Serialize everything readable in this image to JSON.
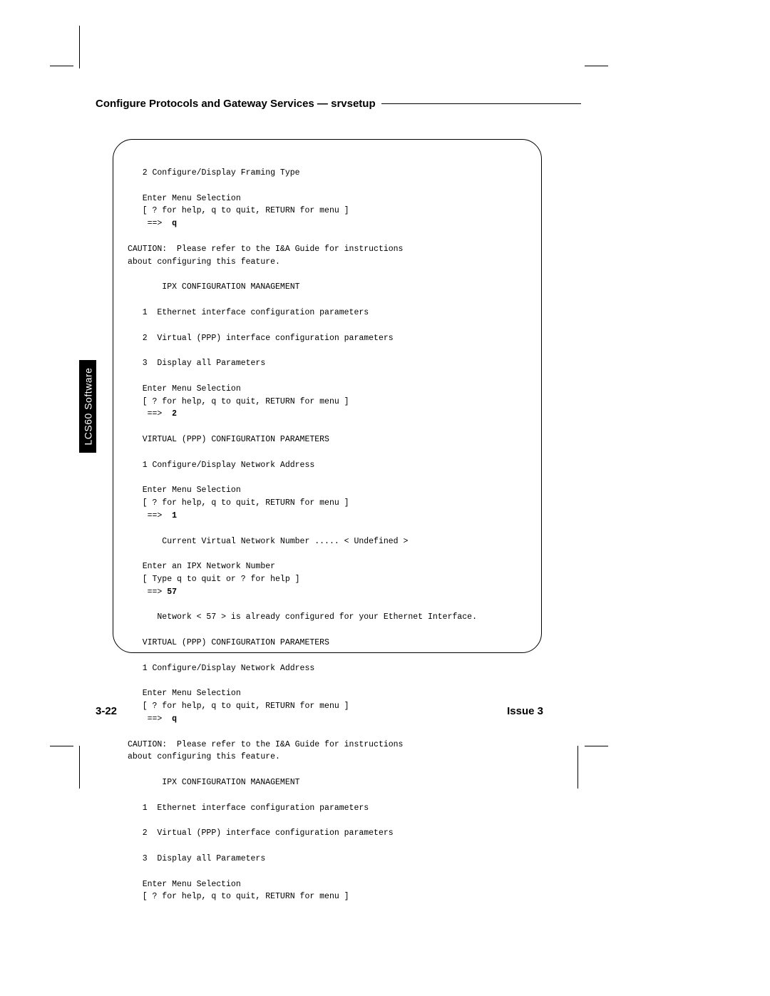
{
  "header": {
    "title": "Configure Protocols and Gateway Services — srvsetup"
  },
  "side_tab": {
    "label": "LCS60 Software"
  },
  "terminal": {
    "l01": "   2 Configure/Display Framing Type",
    "l02": "   Enter Menu Selection",
    "l03": "   [ ? for help, q to quit, RETURN for menu ]",
    "l04a": "    ==>  ",
    "l04b": "q",
    "l05": "CAUTION:  Please refer to the I&A Guide for instructions",
    "l06": "about configuring this feature.",
    "l07": "       IPX CONFIGURATION MANAGEMENT",
    "l08": "   1  Ethernet interface configuration parameters",
    "l09": "   2  Virtual (PPP) interface configuration parameters",
    "l10": "   3  Display all Parameters",
    "l11": "   Enter Menu Selection",
    "l12": "   [ ? for help, q to quit, RETURN for menu ]",
    "l13a": "    ==>  ",
    "l13b": "2",
    "l14": "   VIRTUAL (PPP) CONFIGURATION PARAMETERS",
    "l15": "   1 Configure/Display Network Address",
    "l16": "   Enter Menu Selection",
    "l17": "   [ ? for help, q to quit, RETURN for menu ]",
    "l18a": "    ==>  ",
    "l18b": "1",
    "l19": "       Current Virtual Network Number ..... < Undefined >",
    "l20": "   Enter an IPX Network Number",
    "l21": "   [ Type q to quit or ? for help ]",
    "l22a": "    ==> ",
    "l22b": "57",
    "l23": "      Network < 57 > is already configured for your Ethernet Interface.",
    "l24": "   VIRTUAL (PPP) CONFIGURATION PARAMETERS",
    "l25": "   1 Configure/Display Network Address",
    "l26": "   Enter Menu Selection",
    "l27": "   [ ? for help, q to quit, RETURN for menu ]",
    "l28a": "    ==>  ",
    "l28b": "q",
    "l29": "CAUTION:  Please refer to the I&A Guide for instructions",
    "l30": "about configuring this feature.",
    "l31": "       IPX CONFIGURATION MANAGEMENT",
    "l32": "   1  Ethernet interface configuration parameters",
    "l33": "   2  Virtual (PPP) interface configuration parameters",
    "l34": "   3  Display all Parameters",
    "l35": "   Enter Menu Selection",
    "l36": "   [ ? for help, q to quit, RETURN for menu ]"
  },
  "footer": {
    "page": "3-22",
    "issue": "Issue 3"
  }
}
